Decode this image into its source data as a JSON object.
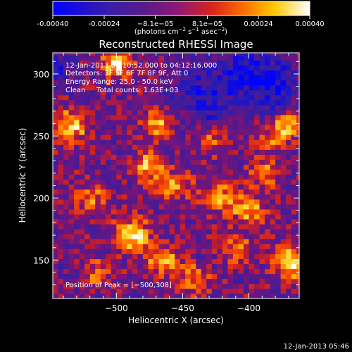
{
  "colorbar": {
    "tick_labels": [
      "-0.00040",
      "-0.00024",
      "−8.1e−05",
      "8.1e−05",
      "0.00024",
      "0.00040"
    ],
    "tick_values": [
      -0.0004,
      -0.00024,
      -8.1e-05,
      8.1e-05,
      0.00024,
      0.0004
    ],
    "units_main": "(photons cm",
    "units_sup1": "−2",
    "units_mid": " s",
    "units_sup2": "−1",
    "units_mid2": " asec",
    "units_sup3": "−2",
    "units_close": ")"
  },
  "chart_data": {
    "type": "heatmap",
    "title": "Reconstructed RHESSI Image",
    "xlabel": "Heliocentric X (arcsec)",
    "ylabel": "Heliocentric Y (arcsec)",
    "xlim": [
      -548,
      -362
    ],
    "ylim": [
      119,
      317
    ],
    "x_ticks": [
      -500,
      -450,
      -400
    ],
    "x_tick_labels": [
      "−500",
      "−450",
      "−400"
    ],
    "y_ticks": [
      150,
      200,
      250,
      300
    ],
    "y_tick_labels": [
      "150",
      "200",
      "250",
      "300"
    ],
    "value_range": [
      -0.0004,
      0.0004
    ],
    "peak_position": [
      -500,
      308
    ],
    "hotspots": [
      {
        "x": -488,
        "y": 170,
        "amp": 1.0,
        "r": 9
      },
      {
        "x": -500,
        "y": 308,
        "amp": 1.0,
        "r": 7
      },
      {
        "x": -535,
        "y": 258,
        "amp": 0.85,
        "r": 9
      },
      {
        "x": -368,
        "y": 148,
        "amp": 0.95,
        "r": 9
      },
      {
        "x": -372,
        "y": 258,
        "amp": 0.85,
        "r": 7
      },
      {
        "x": -475,
        "y": 225,
        "amp": 0.8,
        "r": 8
      },
      {
        "x": -470,
        "y": 260,
        "amp": 0.75,
        "r": 7
      },
      {
        "x": -455,
        "y": 210,
        "amp": 0.7,
        "r": 8
      },
      {
        "x": -420,
        "y": 200,
        "amp": 0.65,
        "r": 9
      },
      {
        "x": -400,
        "y": 190,
        "amp": 0.7,
        "r": 8
      },
      {
        "x": -390,
        "y": 220,
        "amp": 0.6,
        "r": 8
      },
      {
        "x": -465,
        "y": 150,
        "amp": 0.65,
        "r": 9
      },
      {
        "x": -440,
        "y": 135,
        "amp": 0.6,
        "r": 8
      },
      {
        "x": -520,
        "y": 200,
        "amp": 0.55,
        "r": 8
      },
      {
        "x": -410,
        "y": 160,
        "amp": 0.55,
        "r": 8
      },
      {
        "x": -430,
        "y": 245,
        "amp": 0.5,
        "r": 7
      },
      {
        "x": -515,
        "y": 140,
        "amp": 0.5,
        "r": 8
      },
      {
        "x": -385,
        "y": 245,
        "amp": 0.6,
        "r": 6
      }
    ],
    "coldspots": [
      {
        "x": -400,
        "y": 300,
        "amp": 0.85,
        "r": 18
      },
      {
        "x": -440,
        "y": 290,
        "amp": 0.6,
        "r": 14
      },
      {
        "x": -380,
        "y": 290,
        "amp": 0.7,
        "r": 12
      },
      {
        "x": -545,
        "y": 305,
        "amp": 0.6,
        "r": 10
      },
      {
        "x": -430,
        "y": 270,
        "amp": 0.5,
        "r": 10
      }
    ]
  },
  "annotations": {
    "time_range": "12-Jan-2013 04:10:52.000 to 04:12:16.000",
    "detectors": "Detectors: 3F 5F 6F 7F 8F 9F, Att 0",
    "energy": "Energy Range: 25.0 - 50.0 keV",
    "clean": "Clean     Total counts: 1.63E+03",
    "peak": "Position of Peak = [−500,308]",
    "footer_timestamp": "12-Jan-2013 05:46"
  }
}
